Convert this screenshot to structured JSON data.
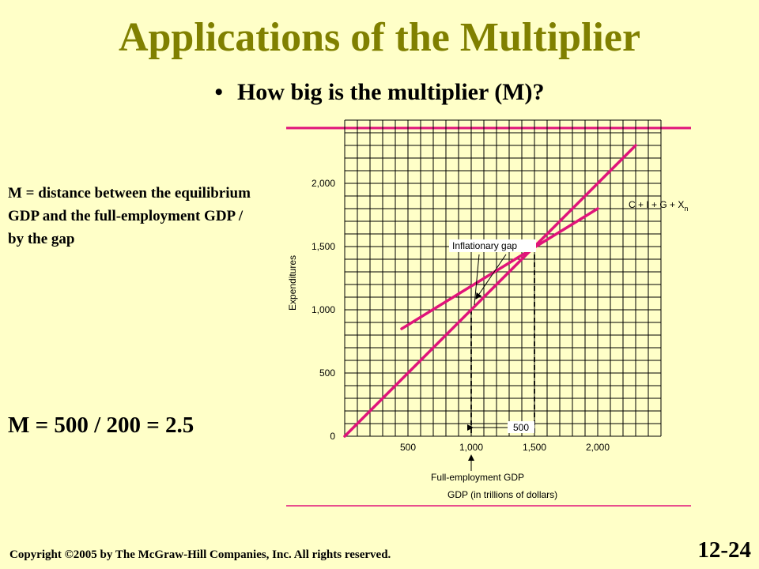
{
  "slide": {
    "title": "Applications of the Multiplier",
    "bullet_marker": "•",
    "bullet": "How big is the multiplier (M)?",
    "definition": "M = distance between the equilibrium GDP and the full-employment GDP / by the gap",
    "formula": "M = 500 / 200 = 2.5",
    "copyright": "Copyright ©2005 by The McGraw-Hill Companies, Inc.  All rights reserved.",
    "slide_number": "12-24"
  },
  "colors": {
    "background": "#ffffc8",
    "title": "#808000",
    "accent_line": "#e0147a",
    "grid": "#000000"
  },
  "chart_data": {
    "type": "line",
    "xlabel": "GDP (in trillions of dollars)",
    "ylabel": "Expenditures",
    "xlim": [
      0,
      2500
    ],
    "ylim": [
      0,
      2500
    ],
    "grid": true,
    "x_ticks": [
      {
        "value": 500,
        "label": "500"
      },
      {
        "value": 1000,
        "label": "1,000"
      },
      {
        "value": 1500,
        "label": "1,500"
      },
      {
        "value": 2000,
        "label": "2,000"
      }
    ],
    "y_ticks": [
      {
        "value": 0,
        "label": "0"
      },
      {
        "value": 500,
        "label": "500"
      },
      {
        "value": 1000,
        "label": "1,000"
      },
      {
        "value": 1500,
        "label": "1,500"
      },
      {
        "value": 2000,
        "label": "2,000"
      }
    ],
    "series": [
      {
        "points": [
          [
            0,
            0
          ],
          [
            2300,
            2300
          ]
        ]
      },
      {
        "name": "C + I + G + X",
        "name_subscript": "n",
        "points": [
          [
            450,
            850
          ],
          [
            2000,
            1800
          ]
        ]
      }
    ],
    "annotations": {
      "inflationary_gap": "Inflationary gap",
      "gdp_difference": "500",
      "full_employment": "Full-employment GDP"
    },
    "markers": {
      "full_employment_gdp": 1000,
      "equilibrium_gdp": 1500,
      "gap_lower": 1000,
      "gap_upper": 1200
    }
  }
}
